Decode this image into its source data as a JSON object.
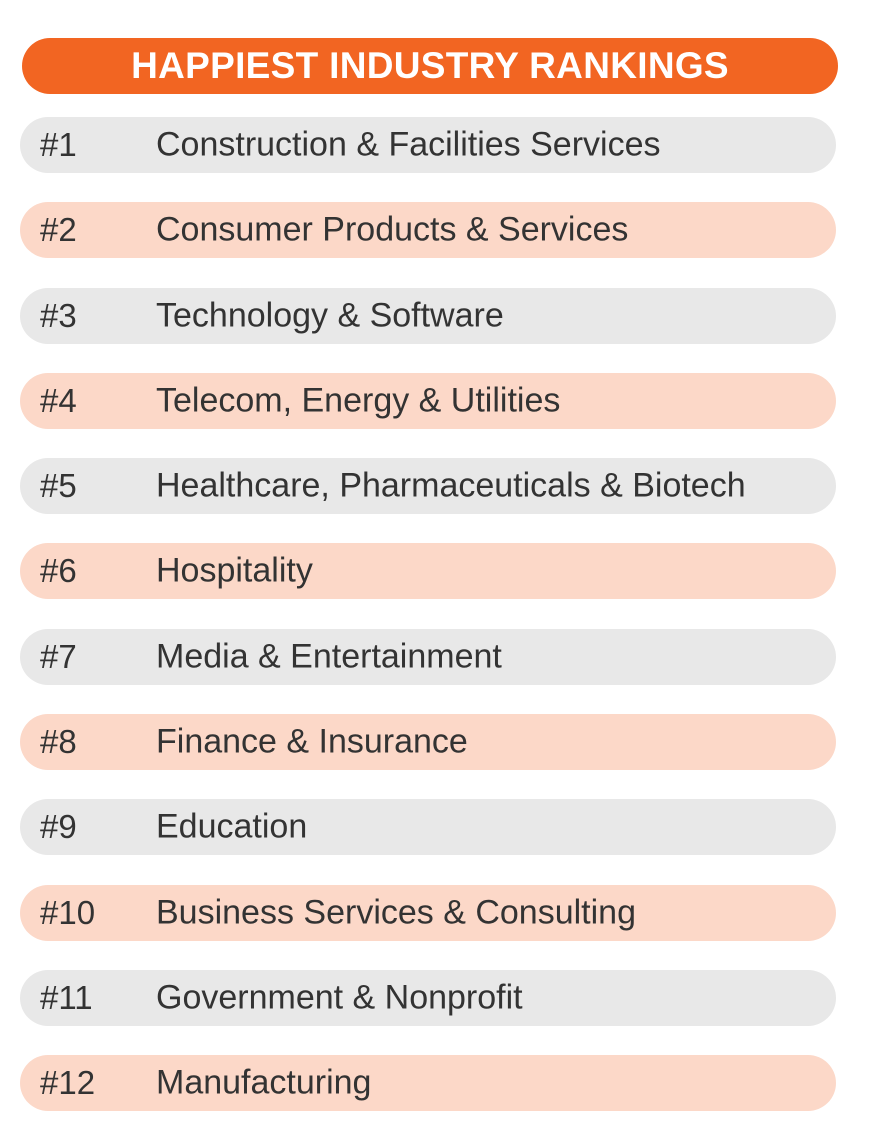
{
  "title": "HAPPIEST INDUSTRY RANKINGS",
  "colors": {
    "title_bg": "#f26522",
    "row_gray": "#e8e8e8",
    "row_peach": "#fcd8c8",
    "text": "#333333"
  },
  "rankings": [
    {
      "rank": "#1",
      "industry": "Construction & Facilities Services"
    },
    {
      "rank": "#2",
      "industry": "Consumer Products & Services"
    },
    {
      "rank": "#3",
      "industry": "Technology & Software"
    },
    {
      "rank": "#4",
      "industry": "Telecom, Energy & Utilities"
    },
    {
      "rank": "#5",
      "industry": "Healthcare, Pharmaceuticals & Biotech"
    },
    {
      "rank": "#6",
      "industry": "Hospitality"
    },
    {
      "rank": "#7",
      "industry": "Media & Entertainment"
    },
    {
      "rank": "#8",
      "industry": "Finance & Insurance"
    },
    {
      "rank": "#9",
      "industry": "Education"
    },
    {
      "rank": "#10",
      "industry": "Business Services & Consulting"
    },
    {
      "rank": "#11",
      "industry": "Government & Nonprofit"
    },
    {
      "rank": "#12",
      "industry": "Manufacturing"
    }
  ]
}
